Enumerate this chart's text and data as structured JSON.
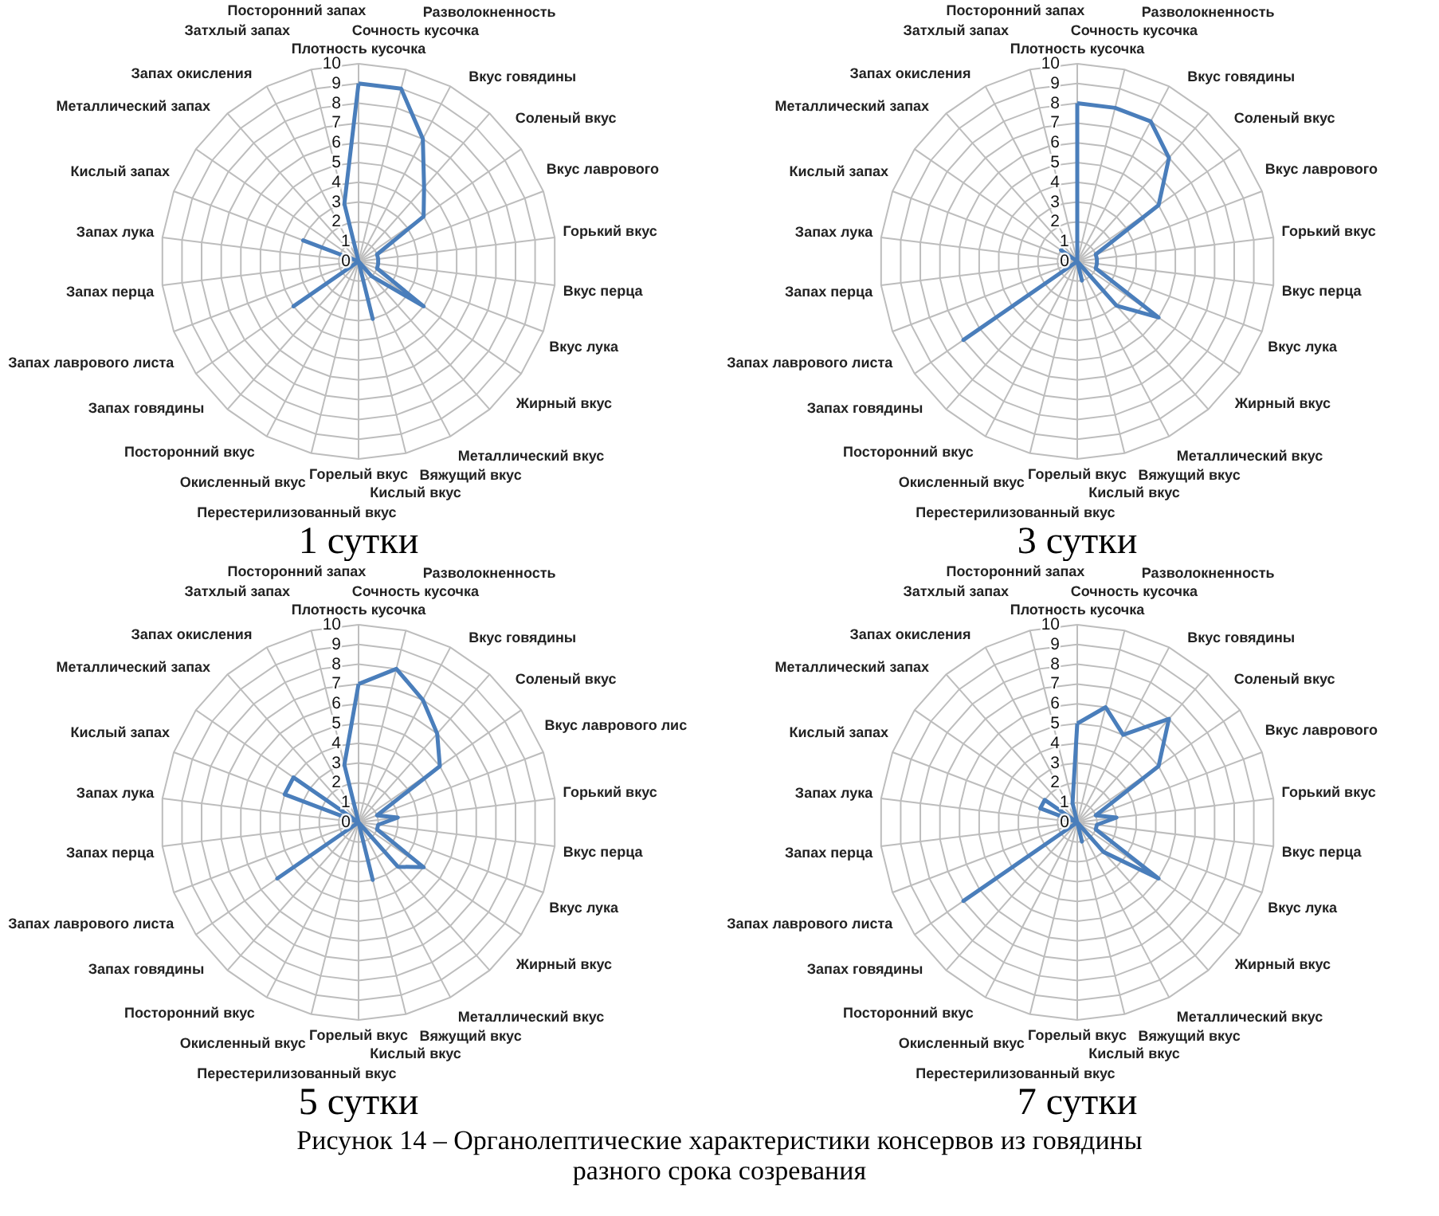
{
  "chart_data": [
    {
      "type": "radar",
      "title": "1 сутки",
      "categories": [
        "Плотность кусочка",
        "Сочность кусочка",
        "Разволокненность",
        "Вкус говядины",
        "Соленый вкус",
        "Вкус лаврового",
        "Горький вкус",
        "Вкус перца",
        "Вкус лука",
        "Жирный вкус",
        "Металлический вкус",
        "Вяжущий вкус",
        "Кислый вкус",
        "Горелый вкус",
        "Перестерилизованный вкус",
        "Окисленный вкус",
        "Посторонний вкус",
        "Запах говядины",
        "Запах лаврового листа",
        "Запах перца",
        "Запах лука",
        "Кислый запах",
        "Металлический запах",
        "Запах окисления",
        "Затхлый запах",
        "Посторонний запах"
      ],
      "series": [
        {
          "color": "#4a7ebb",
          "values": [
            9,
            9,
            7,
            5,
            4,
            1,
            1,
            1,
            1,
            4,
            1,
            0,
            3,
            0,
            0,
            0,
            0,
            4,
            0,
            0,
            0,
            3,
            0,
            0,
            0,
            3
          ]
        }
      ],
      "ylim": [
        0,
        10
      ],
      "yticks": [
        0,
        1,
        2,
        3,
        4,
        5,
        6,
        7,
        8,
        9,
        10
      ],
      "grid": true
    },
    {
      "type": "radar",
      "title": "3 сутки",
      "categories": [
        "Плотность кусочка",
        "Сочность кусочка",
        "Разволокненность",
        "Вкус говядины",
        "Соленый вкус",
        "Вкус лаврового",
        "Горький вкус",
        "Вкус перца",
        "Вкус лука",
        "Жирный вкус",
        "Металлический вкус",
        "Вяжущий вкус",
        "Кислый вкус",
        "Горелый вкус",
        "Перестерилизованный вкус",
        "Окисленный вкус",
        "Посторонний вкус",
        "Запах говядины",
        "Запах лаврового листа",
        "Запах перца",
        "Запах лука",
        "Кислый запах",
        "Металлический запах",
        "Запах окисления",
        "Затхлый запах",
        "Посторонний запах"
      ],
      "series": [
        {
          "color": "#4a7ebb",
          "values": [
            8,
            8,
            8,
            7,
            5,
            1,
            1,
            1,
            1,
            5,
            3,
            0,
            1,
            0,
            0,
            0,
            0,
            7,
            0,
            0,
            0,
            0,
            1,
            0,
            0,
            0
          ]
        }
      ],
      "ylim": [
        0,
        10
      ],
      "yticks": [
        0,
        1,
        2,
        3,
        4,
        5,
        6,
        7,
        8,
        9,
        10
      ],
      "grid": true
    },
    {
      "type": "radar",
      "title": "5 сутки",
      "categories": [
        "Плотность кусочка",
        "Сочность кусочка",
        "Разволокненность",
        "Вкус говядины",
        "Соленый вкус",
        "Вкус лаврового лис",
        "Горький вкус",
        "Вкус перца",
        "Вкус лука",
        "Жирный вкус",
        "Металлический вкус",
        "Вяжущий вкус",
        "Кислый вкус",
        "Горелый вкус",
        "Перестерилизованный вкус",
        "Окисленный вкус",
        "Посторонний вкус",
        "Запах говядины",
        "Запах лаврового листа",
        "Запах перца",
        "Запах лука",
        "Кислый запах",
        "Металлический запах",
        "Запах окисления",
        "Затхлый запах",
        "Посторонний запах"
      ],
      "series": [
        {
          "color": "#4a7ebb",
          "values": [
            7,
            8,
            7,
            6,
            5,
            1,
            2,
            1,
            1,
            4,
            3,
            0,
            3,
            0,
            0,
            0,
            0,
            5,
            0,
            0,
            0,
            4,
            4,
            0,
            0,
            3
          ]
        }
      ],
      "ylim": [
        0,
        10
      ],
      "yticks": [
        0,
        1,
        2,
        3,
        4,
        5,
        6,
        7,
        8,
        9,
        10
      ],
      "grid": true
    },
    {
      "type": "radar",
      "title": "7 сутки",
      "categories": [
        "Плотность кусочка",
        "Сочность кусочка",
        "Разволокненность",
        "Вкус говядины",
        "Соленый вкус",
        "Вкус лаврового",
        "Горький вкус",
        "Вкус перца",
        "Вкус лука",
        "Жирный вкус",
        "Металлический вкус",
        "Вяжущий вкус",
        "Кислый вкус",
        "Горелый вкус",
        "Перестерилизованный вкус",
        "Окисленный вкус",
        "Посторонний вкус",
        "Запах говядины",
        "Запах лаврового листа",
        "Запах перца",
        "Запах лука",
        "Кислый запах",
        "Металлический запах",
        "Запах окисления",
        "Затхлый запах",
        "Посторонний запах"
      ],
      "series": [
        {
          "color": "#4a7ebb",
          "values": [
            5,
            6,
            5,
            7,
            5,
            1,
            2,
            1,
            1,
            5,
            2,
            0,
            1,
            0,
            0,
            0,
            0,
            7,
            0,
            0,
            0,
            2,
            2,
            0,
            0,
            1
          ]
        }
      ],
      "ylim": [
        0,
        10
      ],
      "yticks": [
        0,
        1,
        2,
        3,
        4,
        5,
        6,
        7,
        8,
        9,
        10
      ],
      "grid": true,
      "annotations": [
        "Рисунок 14 – Органолептические характеристики консервов из говядины разного срока созревания"
      ]
    }
  ]
}
